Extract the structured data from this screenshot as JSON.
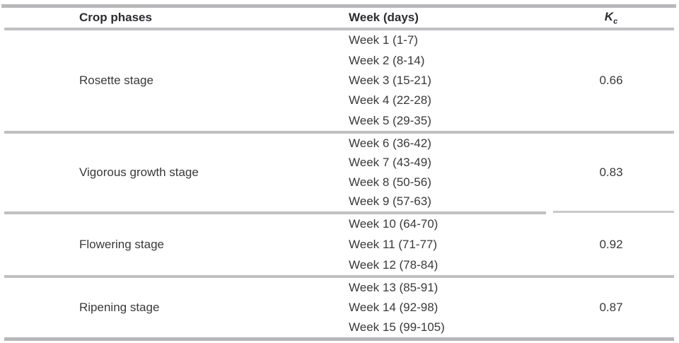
{
  "page": {
    "background": "#ffffff",
    "text_color": "#39393b",
    "rule_color_thick": "#b7b7bb",
    "rule_color_thin": "#c0c0c4"
  },
  "table": {
    "headers": {
      "crop_phases": "Crop phases",
      "week_days": "Week (days)",
      "kc_base": "K",
      "kc_sub": "c"
    },
    "sections": [
      {
        "phase": "Rosette stage",
        "kc": "0.66",
        "weeks": [
          "Week 1 (1-7)",
          "Week 2 (8-14)",
          "Week 3 (15-21)",
          "Week 4 (22-28)",
          "Week 5 (29-35)"
        ]
      },
      {
        "phase": "Vigorous growth stage",
        "kc": "0.83",
        "weeks": [
          "Week 6 (36-42)",
          "Week 7 (43-49)",
          "Week 8 (50-56)",
          "Week 9 (57-63)"
        ]
      },
      {
        "phase": "Flowering stage",
        "kc": "0.92",
        "weeks": [
          "Week 10 (64-70)",
          "Week 11 (71-77)",
          "Week 12 (78-84)"
        ]
      },
      {
        "phase": "Ripening stage",
        "kc": "0.87",
        "weeks": [
          "Week 13 (85-91)",
          "Week 14 (92-98)",
          "Week 15 (99-105)"
        ]
      }
    ]
  }
}
